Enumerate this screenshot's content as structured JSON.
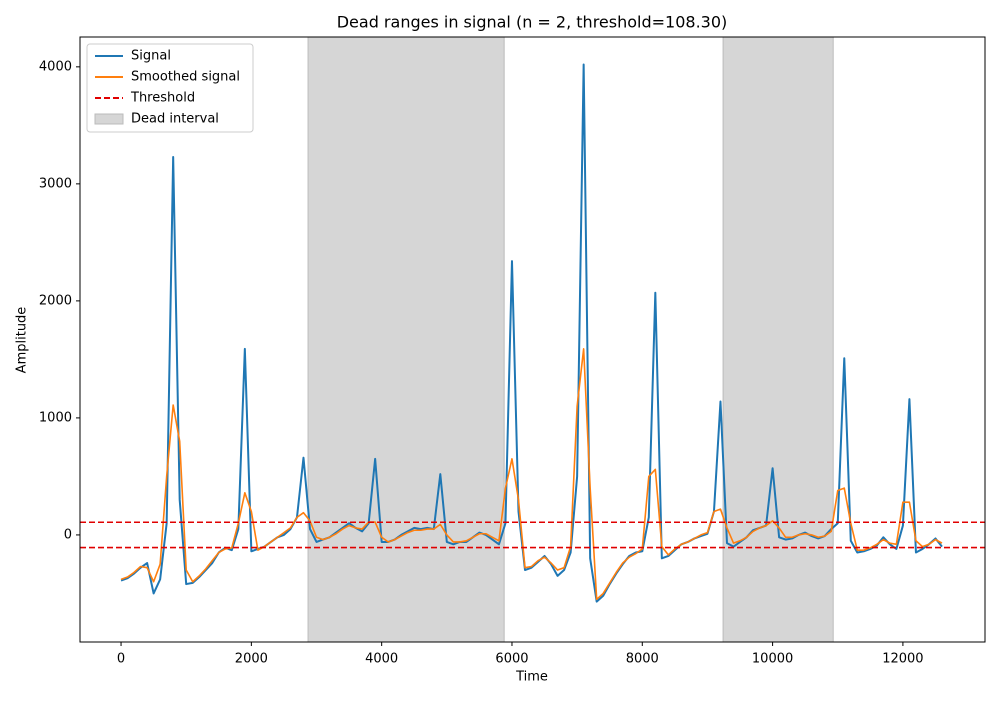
{
  "chart_data": {
    "type": "line",
    "title": "Dead ranges in signal (n = 2, threshold=108.30)",
    "xlabel": "Time",
    "ylabel": "Amplitude",
    "x": [
      0,
      100,
      200,
      300,
      400,
      500,
      600,
      700,
      800,
      900,
      1000,
      1100,
      1200,
      1300,
      1400,
      1500,
      1600,
      1700,
      1800,
      1900,
      2000,
      2100,
      2200,
      2300,
      2400,
      2500,
      2600,
      2700,
      2800,
      2900,
      3000,
      3100,
      3200,
      3300,
      3400,
      3500,
      3600,
      3700,
      3800,
      3900,
      4000,
      4100,
      4200,
      4300,
      4400,
      4500,
      4600,
      4700,
      4800,
      4900,
      5000,
      5100,
      5200,
      5300,
      5400,
      5500,
      5600,
      5700,
      5800,
      5900,
      6000,
      6100,
      6200,
      6300,
      6400,
      6500,
      6600,
      6700,
      6800,
      6900,
      7000,
      7100,
      7200,
      7300,
      7400,
      7500,
      7600,
      7700,
      7800,
      7900,
      8000,
      8100,
      8200,
      8300,
      8400,
      8500,
      8600,
      8700,
      8800,
      8900,
      9000,
      9100,
      9200,
      9300,
      9400,
      9500,
      9600,
      9700,
      9800,
      9900,
      10000,
      10100,
      10200,
      10300,
      10400,
      10500,
      10600,
      10700,
      10800,
      10900,
      11000,
      11100,
      11200,
      11300,
      11400,
      11500,
      11600,
      11700,
      11800,
      11900,
      12000,
      12100,
      12200,
      12300,
      12400,
      12500,
      12600
    ],
    "series": [
      {
        "name": "Signal",
        "color": "#1f77b4",
        "values": [
          -390,
          -370,
          -330,
          -280,
          -240,
          -500,
          -380,
          100,
          3230,
          300,
          -420,
          -410,
          -360,
          -300,
          -240,
          -150,
          -110,
          -130,
          50,
          1590,
          -140,
          -120,
          -100,
          -60,
          -20,
          0,
          50,
          150,
          660,
          50,
          -60,
          -40,
          -20,
          20,
          60,
          100,
          60,
          30,
          100,
          650,
          -60,
          -60,
          -40,
          0,
          30,
          60,
          50,
          60,
          50,
          520,
          -60,
          -80,
          -60,
          -60,
          -20,
          20,
          0,
          -40,
          -80,
          100,
          2340,
          200,
          -300,
          -280,
          -230,
          -180,
          -250,
          -350,
          -300,
          -150,
          500,
          4020,
          -200,
          -570,
          -520,
          -420,
          -330,
          -250,
          -180,
          -150,
          -140,
          150,
          2070,
          -200,
          -180,
          -130,
          -80,
          -60,
          -30,
          -10,
          10,
          200,
          1140,
          -70,
          -100,
          -60,
          -20,
          40,
          60,
          80,
          570,
          -20,
          -40,
          -30,
          0,
          20,
          -10,
          -30,
          -10,
          50,
          100,
          1510,
          -50,
          -150,
          -140,
          -120,
          -90,
          -20,
          -80,
          -120,
          80,
          1160,
          -150,
          -120,
          -80,
          -30,
          -100
        ]
      },
      {
        "name": "Smoothed signal",
        "color": "#ff7f0e",
        "values": [
          -380,
          -360,
          -320,
          -270,
          -280,
          -400,
          -250,
          500,
          1110,
          800,
          -300,
          -400,
          -350,
          -290,
          -220,
          -150,
          -120,
          -110,
          100,
          360,
          200,
          -130,
          -100,
          -60,
          -20,
          20,
          60,
          150,
          190,
          120,
          -20,
          -40,
          -20,
          10,
          50,
          80,
          60,
          50,
          110,
          110,
          -20,
          -60,
          -40,
          -10,
          20,
          40,
          40,
          50,
          50,
          90,
          0,
          -60,
          -60,
          -50,
          -20,
          10,
          10,
          -20,
          -50,
          400,
          650,
          300,
          -280,
          -270,
          -220,
          -190,
          -240,
          -300,
          -280,
          -100,
          1100,
          1590,
          400,
          -550,
          -500,
          -410,
          -320,
          -240,
          -190,
          -160,
          -120,
          500,
          560,
          -100,
          -170,
          -120,
          -80,
          -60,
          -30,
          0,
          20,
          200,
          220,
          60,
          -70,
          -50,
          -20,
          30,
          60,
          80,
          120,
          60,
          -20,
          -20,
          0,
          10,
          0,
          -20,
          -10,
          30,
          380,
          400,
          100,
          -130,
          -130,
          -110,
          -80,
          -40,
          -70,
          -80,
          280,
          280,
          -50,
          -100,
          -80,
          -40,
          -70
        ]
      }
    ],
    "threshold_label": "Threshold",
    "threshold_color": "#e00000",
    "thresholds": [
      108.3,
      -108.3
    ],
    "span_label": "Dead interval",
    "span_color": "#d6d6d6",
    "spans": [
      [
        2870,
        5880
      ],
      [
        9240,
        10930
      ]
    ],
    "xlim": [
      -630,
      13260
    ],
    "ylim": [
      -915,
      4255
    ],
    "xticks": [
      0,
      2000,
      4000,
      6000,
      8000,
      10000,
      12000
    ],
    "yticks": [
      0,
      1000,
      2000,
      3000,
      4000
    ],
    "legend": "upper left"
  }
}
